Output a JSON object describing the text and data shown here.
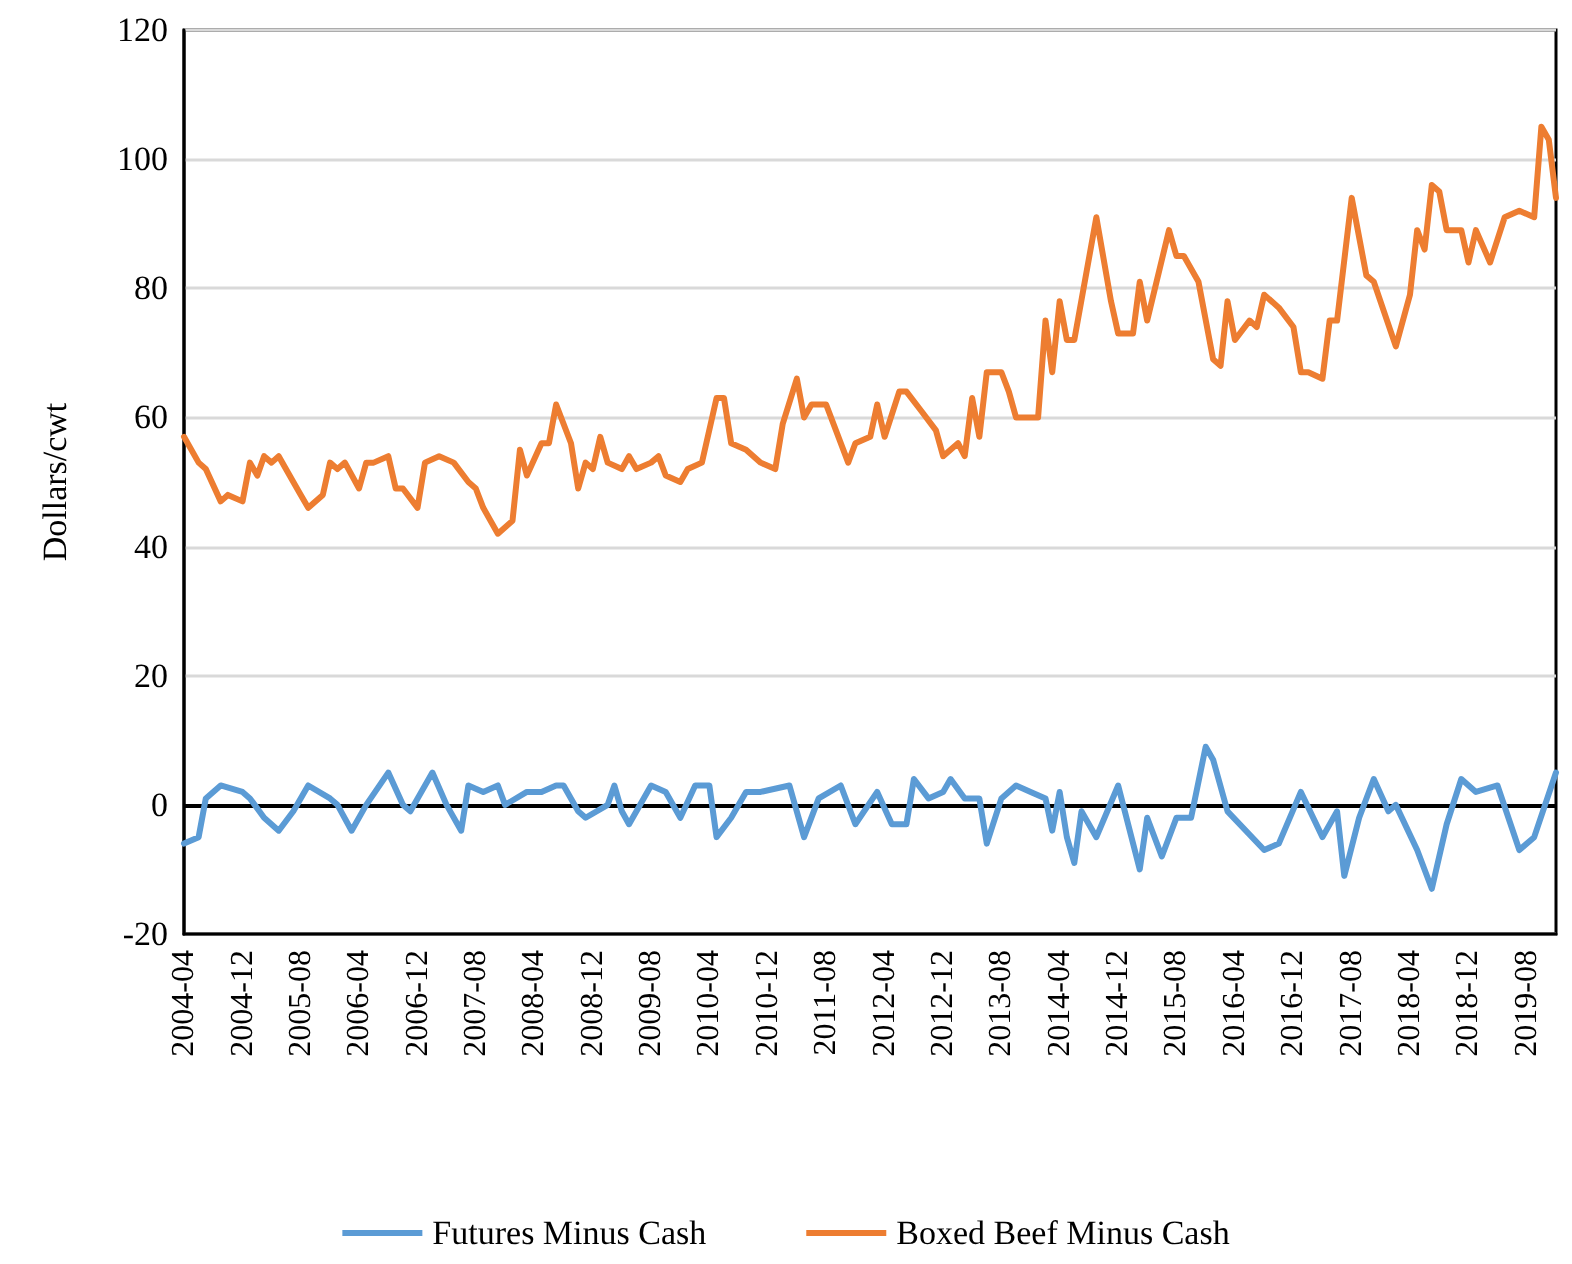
{
  "chart_data": {
    "type": "line",
    "ylabel": "Dollars/cwt",
    "xlim": [
      "2004-04",
      "2019-12"
    ],
    "ylim": [
      -20,
      120
    ],
    "yticks": [
      -20,
      0,
      20,
      40,
      60,
      80,
      100,
      120
    ],
    "xticks": [
      "2004-04",
      "2004-12",
      "2005-08",
      "2006-04",
      "2006-12",
      "2007-08",
      "2008-04",
      "2008-12",
      "2009-08",
      "2010-04",
      "2010-12",
      "2011-08",
      "2012-04",
      "2012-12",
      "2013-08",
      "2014-04",
      "2014-12",
      "2015-08",
      "2016-04",
      "2016-12",
      "2017-08",
      "2018-04",
      "2018-12",
      "2019-08"
    ],
    "grid": "y",
    "legend": "bottom",
    "marker": "none",
    "line_style": "solid",
    "ref_lines": [
      {
        "axis": "y",
        "value": 0,
        "color": "#000000"
      }
    ],
    "series": [
      {
        "name": "Futures Minus Cash",
        "color": "#5b9bd5",
        "x": [
          "2004-04",
          "2004-06",
          "2004-07",
          "2004-09",
          "2004-12",
          "2005-01",
          "2005-03",
          "2005-05",
          "2005-07",
          "2005-09",
          "2005-12",
          "2006-01",
          "2006-03",
          "2006-05",
          "2006-08",
          "2006-10",
          "2006-11",
          "2007-02",
          "2007-04",
          "2007-06",
          "2007-07",
          "2007-09",
          "2007-11",
          "2007-12",
          "2008-03",
          "2008-05",
          "2008-07",
          "2008-08",
          "2008-10",
          "2008-11",
          "2009-02",
          "2009-03",
          "2009-04",
          "2009-05",
          "2009-08",
          "2009-10",
          "2009-12",
          "2010-02",
          "2010-04",
          "2010-05",
          "2010-07",
          "2010-09",
          "2010-11",
          "2011-03",
          "2011-05",
          "2011-07",
          "2011-10",
          "2011-12",
          "2012-03",
          "2012-05",
          "2012-07",
          "2012-08",
          "2012-10",
          "2012-12",
          "2013-01",
          "2013-03",
          "2013-05",
          "2013-06",
          "2013-08",
          "2013-10",
          "2013-12",
          "2014-02",
          "2014-03",
          "2014-04",
          "2014-05",
          "2014-06",
          "2014-07",
          "2014-09",
          "2014-12",
          "2015-03",
          "2015-04",
          "2015-06",
          "2015-08",
          "2015-10",
          "2015-12",
          "2016-01",
          "2016-03",
          "2016-08",
          "2016-10",
          "2017-01",
          "2017-04",
          "2017-06",
          "2017-07",
          "2017-09",
          "2017-11",
          "2018-01",
          "2018-02",
          "2018-05",
          "2018-07",
          "2018-09",
          "2018-11",
          "2019-01",
          "2019-04",
          "2019-07",
          "2019-09",
          "2019-12"
        ],
        "values": [
          -6,
          -5,
          1,
          3,
          2,
          1,
          -2,
          -4,
          -1,
          3,
          1,
          0,
          -4,
          0,
          5,
          0,
          -1,
          5,
          0,
          -4,
          3,
          2,
          3,
          0,
          2,
          2,
          3,
          3,
          -1,
          -2,
          0,
          3,
          -1,
          -3,
          3,
          2,
          -2,
          3,
          3,
          -5,
          -2,
          2,
          2,
          3,
          -5,
          1,
          3,
          -3,
          2,
          -3,
          -3,
          4,
          1,
          2,
          4,
          1,
          1,
          -6,
          1,
          3,
          2,
          1,
          -4,
          2,
          -5,
          -9,
          -1,
          -5,
          3,
          -10,
          -2,
          -8,
          -2,
          -2,
          9,
          7,
          -1,
          -7,
          -6,
          2,
          -5,
          -1,
          -11,
          -2,
          4,
          -1,
          0,
          -7,
          -13,
          -3,
          4,
          2,
          3,
          -7,
          -5,
          5
        ]
      },
      {
        "name": "Boxed Beef Minus Cash",
        "color": "#ed7d31",
        "x": [
          "2004-04",
          "2004-06",
          "2004-07",
          "2004-09",
          "2004-10",
          "2004-12",
          "2005-01",
          "2005-02",
          "2005-03",
          "2005-04",
          "2005-05",
          "2005-07",
          "2005-08",
          "2005-09",
          "2005-11",
          "2005-12",
          "2006-01",
          "2006-02",
          "2006-04",
          "2006-05",
          "2006-06",
          "2006-08",
          "2006-09",
          "2006-10",
          "2006-12",
          "2007-01",
          "2007-03",
          "2007-05",
          "2007-07",
          "2007-08",
          "2007-09",
          "2007-11",
          "2008-01",
          "2008-02",
          "2008-03",
          "2008-05",
          "2008-06",
          "2008-07",
          "2008-09",
          "2008-10",
          "2008-11",
          "2008-12",
          "2009-01",
          "2009-02",
          "2009-04",
          "2009-05",
          "2009-06",
          "2009-08",
          "2009-09",
          "2009-10",
          "2009-12",
          "2010-01",
          "2010-03",
          "2010-05",
          "2010-06",
          "2010-07",
          "2010-09",
          "2010-11",
          "2011-01",
          "2011-02",
          "2011-04",
          "2011-05",
          "2011-06",
          "2011-08",
          "2011-11",
          "2011-12",
          "2012-02",
          "2012-03",
          "2012-04",
          "2012-06",
          "2012-07",
          "2012-09",
          "2012-11",
          "2012-12",
          "2013-02",
          "2013-03",
          "2013-04",
          "2013-05",
          "2013-06",
          "2013-08",
          "2013-09",
          "2013-10",
          "2014-01",
          "2014-02",
          "2014-03",
          "2014-04",
          "2014-05",
          "2014-06",
          "2014-09",
          "2014-11",
          "2014-12",
          "2015-02",
          "2015-03",
          "2015-04",
          "2015-07",
          "2015-08",
          "2015-09",
          "2015-11",
          "2016-01",
          "2016-02",
          "2016-03",
          "2016-04",
          "2016-06",
          "2016-07",
          "2016-08",
          "2016-10",
          "2016-12",
          "2017-01",
          "2017-02",
          "2017-04",
          "2017-05",
          "2017-06",
          "2017-08",
          "2017-10",
          "2017-11",
          "2018-02",
          "2018-04",
          "2018-05",
          "2018-06",
          "2018-07",
          "2018-08",
          "2018-09",
          "2018-11",
          "2018-12",
          "2019-01",
          "2019-03",
          "2019-05",
          "2019-07",
          "2019-09",
          "2019-10",
          "2019-11",
          "2019-12"
        ],
        "values": [
          57,
          53,
          52,
          47,
          48,
          47,
          53,
          51,
          54,
          53,
          54,
          50,
          48,
          46,
          48,
          53,
          52,
          53,
          49,
          53,
          53,
          54,
          49,
          49,
          46,
          53,
          54,
          53,
          50,
          49,
          46,
          42,
          44,
          55,
          51,
          56,
          56,
          62,
          56,
          49,
          53,
          52,
          57,
          53,
          52,
          54,
          52,
          53,
          54,
          51,
          50,
          52,
          53,
          63,
          63,
          56,
          55,
          53,
          52,
          59,
          66,
          60,
          62,
          62,
          53,
          56,
          57,
          62,
          57,
          64,
          64,
          61,
          58,
          54,
          56,
          54,
          63,
          57,
          67,
          67,
          64,
          60,
          60,
          75,
          67,
          78,
          72,
          72,
          91,
          78,
          73,
          73,
          81,
          75,
          89,
          85,
          85,
          81,
          69,
          68,
          78,
          72,
          75,
          74,
          79,
          77,
          74,
          67,
          67,
          66,
          75,
          75,
          94,
          82,
          81,
          71,
          79,
          89,
          86,
          96,
          95,
          89,
          89,
          84,
          89,
          84,
          91,
          92,
          91,
          105,
          103,
          94
        ]
      }
    ]
  }
}
